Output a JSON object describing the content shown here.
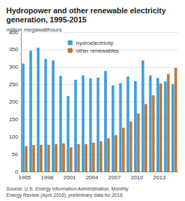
{
  "chart_data": {
    "type": "bar",
    "title": "Hydropower and other renewable electricity generation, 1995-2015",
    "subtitle": "million megawatthours",
    "source": "Source: U.S. Energy Information Administration, Monthly Energy Review (April 2016), preliminary data for 2016",
    "categories": [
      "1995",
      null,
      null,
      "1998",
      null,
      null,
      "2001",
      null,
      null,
      "2004",
      null,
      null,
      "2007",
      null,
      null,
      "2010",
      null,
      null,
      "2013",
      null,
      null
    ],
    "series": [
      {
        "name": "hydroelectricity",
        "color": "#3f9fdb",
        "values": [
          310,
          347,
          356,
          323,
          319,
          275,
          217,
          264,
          276,
          268,
          270,
          289,
          247,
          254,
          273,
          260,
          319,
          276,
          269,
          259,
          251
        ]
      },
      {
        "name": "other renewables",
        "color": "#c4772f",
        "values": [
          73,
          76,
          77,
          77,
          79,
          81,
          70,
          79,
          79,
          83,
          87,
          96,
          105,
          126,
          144,
          167,
          194,
          219,
          253,
          280,
          298
        ]
      }
    ],
    "ylim": [
      0,
      400
    ],
    "yticks": [
      0,
      50,
      100,
      150,
      200,
      250,
      300,
      350,
      400
    ],
    "grid": true,
    "legend": "upper left"
  }
}
